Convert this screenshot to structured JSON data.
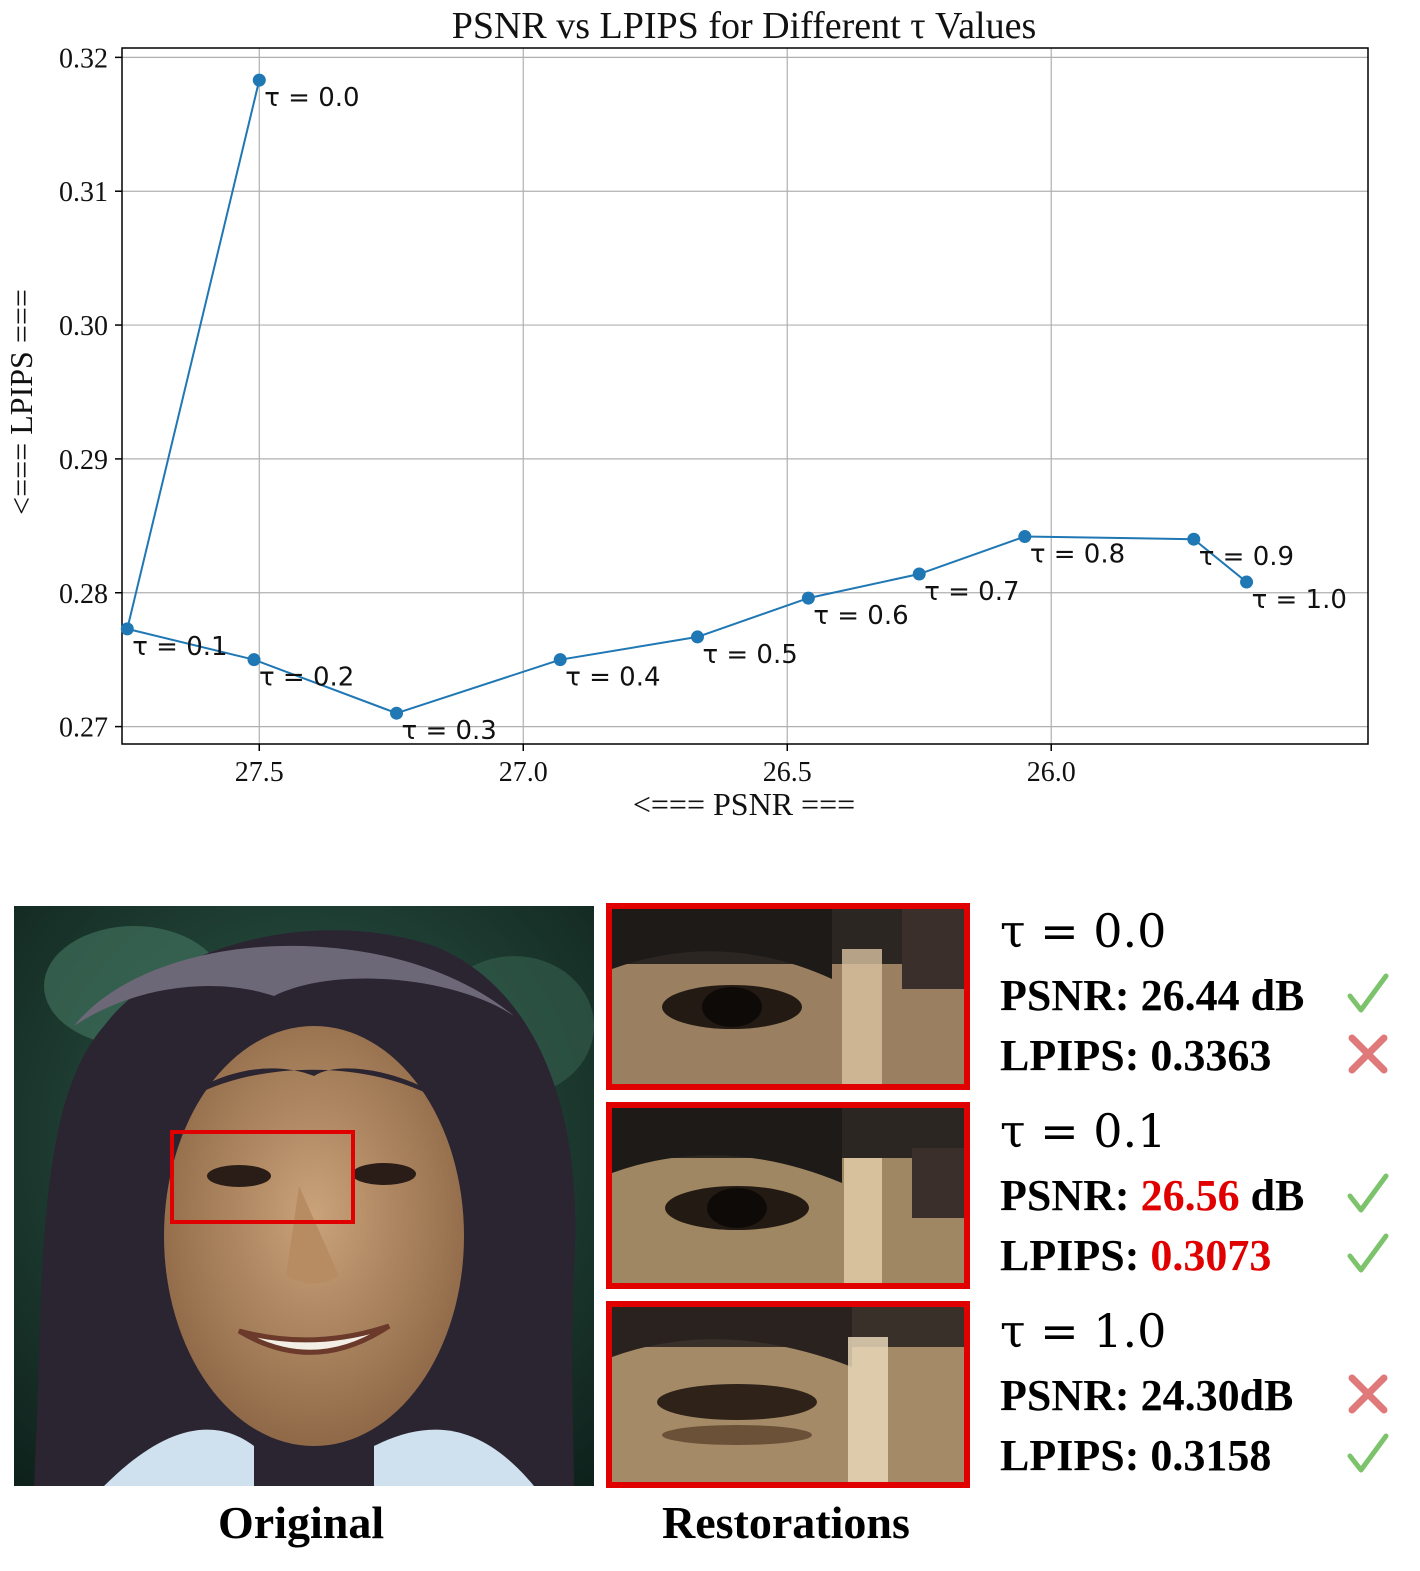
{
  "chart_data": {
    "type": "line",
    "title": "PSNR vs LPIPS for Different τ Values",
    "xlabel": "<=== PSNR ===",
    "ylabel": "<=== LPIPS ===",
    "x_reversed": true,
    "xlim": [
      27.76,
      25.4
    ],
    "ylim": [
      0.2687,
      0.3207
    ],
    "xticks": [
      27.5,
      27.0,
      26.5,
      26.0
    ],
    "xtick_labels": [
      "27.5",
      "27.0",
      "26.5",
      "26.0"
    ],
    "yticks": [
      0.27,
      0.28,
      0.29,
      0.3,
      0.31,
      0.32
    ],
    "ytick_labels": [
      "0.27",
      "0.28",
      "0.29",
      "0.30",
      "0.31",
      "0.32"
    ],
    "grid": true,
    "line_color": "#1f77b4",
    "points": [
      {
        "label": "τ = 0.0",
        "x": 27.5,
        "y": 0.3183
      },
      {
        "label": "τ = 0.1",
        "x": 27.75,
        "y": 0.2773
      },
      {
        "label": "τ = 0.2",
        "x": 27.51,
        "y": 0.275
      },
      {
        "label": "τ = 0.3",
        "x": 27.24,
        "y": 0.271
      },
      {
        "label": "τ = 0.4",
        "x": 26.93,
        "y": 0.275
      },
      {
        "label": "τ = 0.5",
        "x": 26.67,
        "y": 0.2767
      },
      {
        "label": "τ = 0.6",
        "x": 26.46,
        "y": 0.2796
      },
      {
        "label": "τ = 0.7",
        "x": 26.25,
        "y": 0.2814
      },
      {
        "label": "τ = 0.8",
        "x": 26.05,
        "y": 0.2842
      },
      {
        "label": "τ = 0.9",
        "x": 25.73,
        "y": 0.284
      },
      {
        "label": "τ = 1.0",
        "x": 25.63,
        "y": 0.2808
      }
    ]
  },
  "figure": {
    "original_caption": "Original",
    "restorations_caption": "Restorations",
    "results": [
      {
        "tau": "τ = 0.0",
        "psnr_label": "PSNR: ",
        "psnr_value": "26.44",
        "psnr_unit": " dB",
        "psnr_mark": "check",
        "lpips_label": "LPIPS: ",
        "lpips_value": "0.3363",
        "lpips_mark": "cross"
      },
      {
        "tau": "τ = 0.1",
        "psnr_label": "PSNR: ",
        "psnr_value": "26.56",
        "psnr_unit": " dB",
        "psnr_mark": "check",
        "lpips_label": "LPIPS: ",
        "lpips_value": "0.3073",
        "lpips_mark": "check"
      },
      {
        "tau": "τ = 1.0",
        "psnr_label": "PSNR: ",
        "psnr_value": "24.30",
        "psnr_unit": "dB",
        "psnr_mark": "cross",
        "lpips_label": "LPIPS: ",
        "lpips_value": "0.3158",
        "lpips_mark": "check"
      }
    ],
    "colors": {
      "highlight": "#e00000",
      "check": "#7cc36b",
      "cross": "#e07a7a"
    }
  }
}
